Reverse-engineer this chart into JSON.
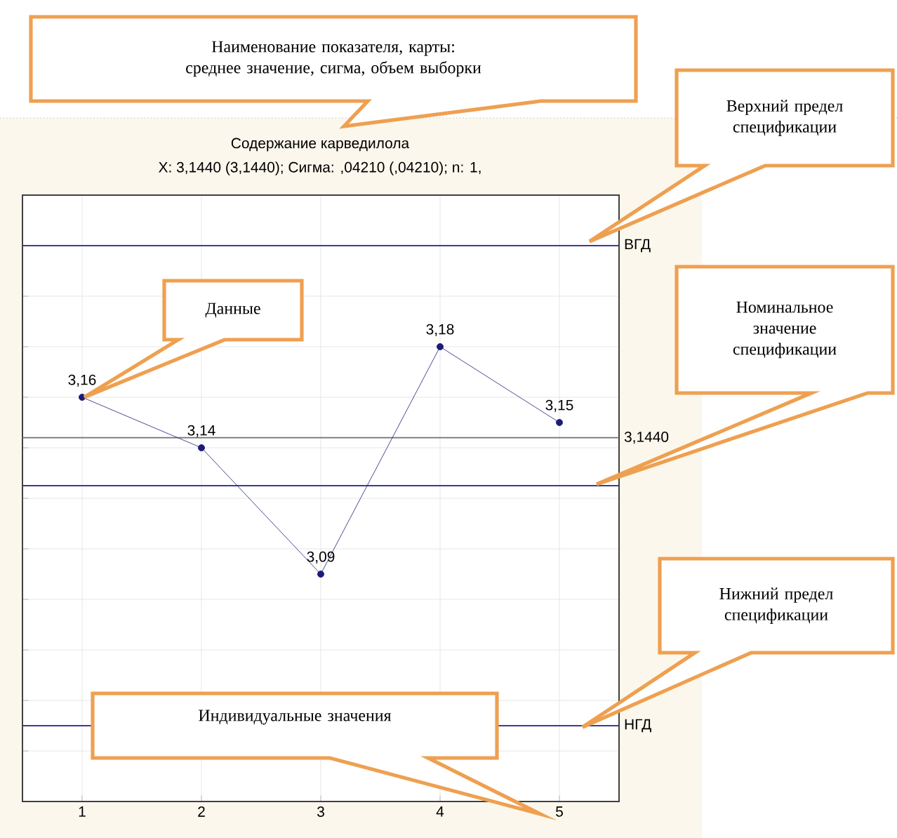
{
  "chart_data": {
    "type": "line",
    "title": "Содержание карведилола",
    "subtitle": "X: 3,1440 (3,1440); Сигма: ,04210 (,04210); n: 1,",
    "annotations": [
      "Наименование показателя, карты: среднее значение, сигма, объем выборки",
      "Верхний предел спецификации",
      "Данные",
      "Номинальное значение спецификации",
      "Нижний предел спецификации",
      "Индивидуальные значения"
    ],
    "x": [
      1,
      2,
      3,
      4,
      5
    ],
    "series": [
      {
        "color": "#1c1c78",
        "values": [
          3.16,
          3.14,
          3.09,
          3.18,
          3.15
        ],
        "value_labels": [
          "3,16",
          "3,14",
          "3,09",
          "3,18",
          "3,15"
        ]
      }
    ],
    "xlim": [
      0.5,
      5.5
    ],
    "ylim": [
      3.0,
      3.24
    ],
    "xticks": [
      1,
      2,
      3,
      4,
      5
    ],
    "yticks": [
      {
        "value": 3.0,
        "label": null
      },
      {
        "value": 3.02,
        "label": null
      },
      {
        "value": 3.04,
        "label": null
      },
      {
        "value": 3.06,
        "label": null
      },
      {
        "value": 3.08,
        "label": null
      },
      {
        "value": 3.1,
        "label": null
      },
      {
        "value": 3.12,
        "label": null
      },
      {
        "value": 3.14,
        "label": null
      },
      {
        "value": 3.16,
        "label": null
      },
      {
        "value": 3.18,
        "label": null
      },
      {
        "value": 3.2,
        "label": null
      },
      {
        "value": 3.22,
        "label": null
      },
      {
        "value": 3.24,
        "label": null
      }
    ],
    "tick_labels": "x",
    "grid": true,
    "marker": "circle",
    "ref_lines": [
      {
        "axis": "y",
        "value": 3.22,
        "label": "ВГД",
        "color": "#3a3a96"
      },
      {
        "axis": "y",
        "value": 3.144,
        "label": "3,1440",
        "color": "#707070"
      },
      {
        "axis": "y",
        "value": 3.125,
        "color": "#3a3a96"
      },
      {
        "axis": "y",
        "value": 3.03,
        "label": "НГД",
        "color": "#3a3a96"
      }
    ]
  }
}
